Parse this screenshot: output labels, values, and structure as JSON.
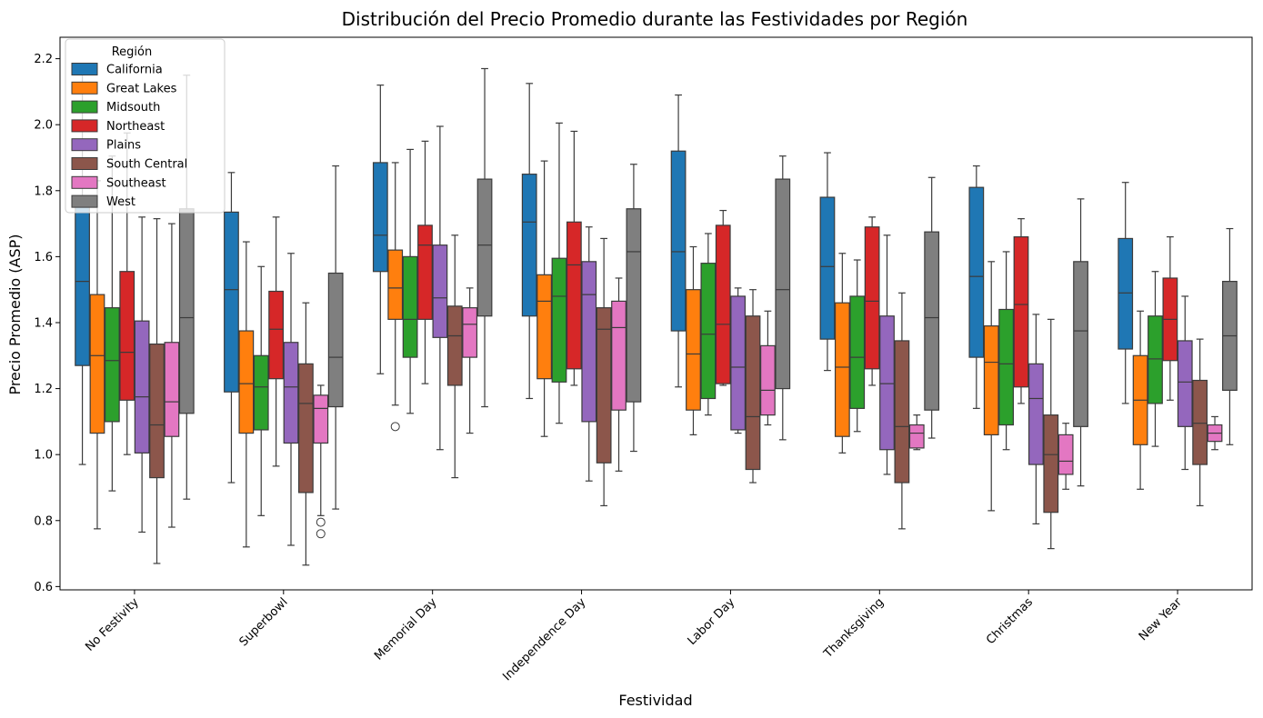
{
  "chart_data": {
    "type": "boxplot",
    "title": "Distribución del Precio Promedio durante las Festividades por Región",
    "xlabel": "Festividad",
    "ylabel": "Precio Promedio (ASP)",
    "ylim": [
      0.59,
      2.265
    ],
    "yticks": [
      0.6,
      0.8,
      1.0,
      1.2,
      1.4,
      1.6,
      1.8,
      2.0,
      2.2
    ],
    "ytick_labels": [
      "0.6",
      "0.8",
      "1.0",
      "1.2",
      "1.4",
      "1.6",
      "1.8",
      "2.0",
      "2.2"
    ],
    "grid": false,
    "legend": {
      "title": "Región",
      "placement": "top-left"
    },
    "categories": [
      "No Festivity",
      "Superbowl",
      "Memorial Day",
      "Independence Day",
      "Labor Day",
      "Thanksgiving",
      "Christmas",
      "New Year"
    ],
    "series": [
      {
        "name": "California",
        "color": "#1f77b4",
        "boxes": [
          {
            "whislo": 0.97,
            "q1": 1.27,
            "med": 1.525,
            "q3": 1.78,
            "whishi": 2.185,
            "fliers": []
          },
          {
            "whislo": 0.915,
            "q1": 1.19,
            "med": 1.5,
            "q3": 1.735,
            "whishi": 1.855,
            "fliers": []
          },
          {
            "whislo": 1.245,
            "q1": 1.555,
            "med": 1.665,
            "q3": 1.885,
            "whishi": 2.12,
            "fliers": []
          },
          {
            "whislo": 1.17,
            "q1": 1.42,
            "med": 1.705,
            "q3": 1.85,
            "whishi": 2.125,
            "fliers": []
          },
          {
            "whislo": 1.205,
            "q1": 1.375,
            "med": 1.615,
            "q3": 1.92,
            "whishi": 2.09,
            "fliers": []
          },
          {
            "whislo": 1.255,
            "q1": 1.35,
            "med": 1.57,
            "q3": 1.78,
            "whishi": 1.915,
            "fliers": []
          },
          {
            "whislo": 1.14,
            "q1": 1.295,
            "med": 1.54,
            "q3": 1.81,
            "whishi": 1.875,
            "fliers": []
          },
          {
            "whislo": 1.155,
            "q1": 1.32,
            "med": 1.49,
            "q3": 1.655,
            "whishi": 1.825,
            "fliers": []
          }
        ]
      },
      {
        "name": "Great Lakes",
        "color": "#ff7f0e",
        "boxes": [
          {
            "whislo": 0.775,
            "q1": 1.065,
            "med": 1.3,
            "q3": 1.485,
            "whishi": 1.83,
            "fliers": []
          },
          {
            "whislo": 0.72,
            "q1": 1.065,
            "med": 1.215,
            "q3": 1.375,
            "whishi": 1.645,
            "fliers": []
          },
          {
            "whislo": 1.15,
            "q1": 1.41,
            "med": 1.505,
            "q3": 1.62,
            "whishi": 1.885,
            "fliers": [
              1.085
            ]
          },
          {
            "whislo": 1.055,
            "q1": 1.23,
            "med": 1.465,
            "q3": 1.545,
            "whishi": 1.89,
            "fliers": []
          },
          {
            "whislo": 1.06,
            "q1": 1.135,
            "med": 1.305,
            "q3": 1.5,
            "whishi": 1.63,
            "fliers": []
          },
          {
            "whislo": 1.005,
            "q1": 1.055,
            "med": 1.265,
            "q3": 1.46,
            "whishi": 1.61,
            "fliers": []
          },
          {
            "whislo": 0.83,
            "q1": 1.06,
            "med": 1.28,
            "q3": 1.39,
            "whishi": 1.585,
            "fliers": []
          },
          {
            "whislo": 0.895,
            "q1": 1.03,
            "med": 1.165,
            "q3": 1.3,
            "whishi": 1.435,
            "fliers": []
          }
        ]
      },
      {
        "name": "Midsouth",
        "color": "#2ca02c",
        "boxes": [
          {
            "whislo": 0.89,
            "q1": 1.1,
            "med": 1.285,
            "q3": 1.445,
            "whishi": 1.905,
            "fliers": []
          },
          {
            "whislo": 0.815,
            "q1": 1.075,
            "med": 1.205,
            "q3": 1.3,
            "whishi": 1.57,
            "fliers": []
          },
          {
            "whislo": 1.125,
            "q1": 1.295,
            "med": 1.41,
            "q3": 1.6,
            "whishi": 1.925,
            "fliers": []
          },
          {
            "whislo": 1.095,
            "q1": 1.22,
            "med": 1.48,
            "q3": 1.595,
            "whishi": 2.005,
            "fliers": []
          },
          {
            "whislo": 1.12,
            "q1": 1.17,
            "med": 1.365,
            "q3": 1.58,
            "whishi": 1.67,
            "fliers": []
          },
          {
            "whislo": 1.07,
            "q1": 1.14,
            "med": 1.295,
            "q3": 1.48,
            "whishi": 1.59,
            "fliers": []
          },
          {
            "whislo": 1.015,
            "q1": 1.09,
            "med": 1.275,
            "q3": 1.44,
            "whishi": 1.615,
            "fliers": []
          },
          {
            "whislo": 1.025,
            "q1": 1.155,
            "med": 1.29,
            "q3": 1.42,
            "whishi": 1.555,
            "fliers": []
          }
        ]
      },
      {
        "name": "Northeast",
        "color": "#d62728",
        "boxes": [
          {
            "whislo": 1.0,
            "q1": 1.165,
            "med": 1.31,
            "q3": 1.555,
            "whishi": 1.975,
            "fliers": []
          },
          {
            "whislo": 0.965,
            "q1": 1.23,
            "med": 1.38,
            "q3": 1.495,
            "whishi": 1.72,
            "fliers": []
          },
          {
            "whislo": 1.215,
            "q1": 1.41,
            "med": 1.635,
            "q3": 1.695,
            "whishi": 1.95,
            "fliers": []
          },
          {
            "whislo": 1.21,
            "q1": 1.26,
            "med": 1.575,
            "q3": 1.705,
            "whishi": 1.98,
            "fliers": []
          },
          {
            "whislo": 1.21,
            "q1": 1.215,
            "med": 1.395,
            "q3": 1.695,
            "whishi": 1.74,
            "fliers": []
          },
          {
            "whislo": 1.21,
            "q1": 1.26,
            "med": 1.465,
            "q3": 1.69,
            "whishi": 1.72,
            "fliers": []
          },
          {
            "whislo": 1.155,
            "q1": 1.205,
            "med": 1.455,
            "q3": 1.66,
            "whishi": 1.715,
            "fliers": []
          },
          {
            "whislo": 1.165,
            "q1": 1.285,
            "med": 1.41,
            "q3": 1.535,
            "whishi": 1.66,
            "fliers": []
          }
        ]
      },
      {
        "name": "Plains",
        "color": "#9467bd",
        "boxes": [
          {
            "whislo": 0.765,
            "q1": 1.005,
            "med": 1.175,
            "q3": 1.405,
            "whishi": 1.72,
            "fliers": []
          },
          {
            "whislo": 0.725,
            "q1": 1.035,
            "med": 1.205,
            "q3": 1.34,
            "whishi": 1.61,
            "fliers": []
          },
          {
            "whislo": 1.015,
            "q1": 1.355,
            "med": 1.475,
            "q3": 1.635,
            "whishi": 1.995,
            "fliers": []
          },
          {
            "whislo": 0.92,
            "q1": 1.1,
            "med": 1.485,
            "q3": 1.585,
            "whishi": 1.69,
            "fliers": []
          },
          {
            "whislo": 1.065,
            "q1": 1.075,
            "med": 1.265,
            "q3": 1.48,
            "whishi": 1.505,
            "fliers": []
          },
          {
            "whislo": 0.94,
            "q1": 1.015,
            "med": 1.215,
            "q3": 1.42,
            "whishi": 1.665,
            "fliers": []
          },
          {
            "whislo": 0.79,
            "q1": 0.97,
            "med": 1.17,
            "q3": 1.275,
            "whishi": 1.425,
            "fliers": []
          },
          {
            "whislo": 0.955,
            "q1": 1.085,
            "med": 1.22,
            "q3": 1.345,
            "whishi": 1.48,
            "fliers": []
          }
        ]
      },
      {
        "name": "South Central",
        "color": "#8c564b",
        "boxes": [
          {
            "whislo": 0.67,
            "q1": 0.93,
            "med": 1.09,
            "q3": 1.335,
            "whishi": 1.715,
            "fliers": []
          },
          {
            "whislo": 0.665,
            "q1": 0.885,
            "med": 1.155,
            "q3": 1.275,
            "whishi": 1.46,
            "fliers": []
          },
          {
            "whislo": 0.93,
            "q1": 1.21,
            "med": 1.36,
            "q3": 1.45,
            "whishi": 1.665,
            "fliers": []
          },
          {
            "whislo": 0.845,
            "q1": 0.975,
            "med": 1.38,
            "q3": 1.445,
            "whishi": 1.655,
            "fliers": []
          },
          {
            "whislo": 0.915,
            "q1": 0.955,
            "med": 1.115,
            "q3": 1.42,
            "whishi": 1.5,
            "fliers": []
          },
          {
            "whislo": 0.775,
            "q1": 0.915,
            "med": 1.085,
            "q3": 1.345,
            "whishi": 1.49,
            "fliers": []
          },
          {
            "whislo": 0.715,
            "q1": 0.825,
            "med": 1.0,
            "q3": 1.12,
            "whishi": 1.41,
            "fliers": []
          },
          {
            "whislo": 0.845,
            "q1": 0.97,
            "med": 1.095,
            "q3": 1.225,
            "whishi": 1.35,
            "fliers": []
          }
        ]
      },
      {
        "name": "Southeast",
        "color": "#e377c2",
        "boxes": [
          {
            "whislo": 0.78,
            "q1": 1.055,
            "med": 1.16,
            "q3": 1.34,
            "whishi": 1.7,
            "fliers": []
          },
          {
            "whislo": 0.815,
            "q1": 1.035,
            "med": 1.14,
            "q3": 1.18,
            "whishi": 1.21,
            "fliers": [
              0.795,
              0.76
            ]
          },
          {
            "whislo": 1.065,
            "q1": 1.295,
            "med": 1.395,
            "q3": 1.445,
            "whishi": 1.505,
            "fliers": []
          },
          {
            "whislo": 0.95,
            "q1": 1.135,
            "med": 1.385,
            "q3": 1.465,
            "whishi": 1.535,
            "fliers": []
          },
          {
            "whislo": 1.09,
            "q1": 1.12,
            "med": 1.195,
            "q3": 1.33,
            "whishi": 1.435,
            "fliers": []
          },
          {
            "whislo": 1.015,
            "q1": 1.02,
            "med": 1.065,
            "q3": 1.09,
            "whishi": 1.12,
            "fliers": []
          },
          {
            "whislo": 0.895,
            "q1": 0.94,
            "med": 0.98,
            "q3": 1.06,
            "whishi": 1.095,
            "fliers": []
          },
          {
            "whislo": 1.015,
            "q1": 1.04,
            "med": 1.065,
            "q3": 1.09,
            "whishi": 1.115,
            "fliers": []
          }
        ]
      },
      {
        "name": "West",
        "color": "#7f7f7f",
        "boxes": [
          {
            "whislo": 0.865,
            "q1": 1.125,
            "med": 1.415,
            "q3": 1.745,
            "whishi": 2.15,
            "fliers": []
          },
          {
            "whislo": 0.835,
            "q1": 1.145,
            "med": 1.295,
            "q3": 1.55,
            "whishi": 1.875,
            "fliers": []
          },
          {
            "whislo": 1.145,
            "q1": 1.42,
            "med": 1.635,
            "q3": 1.835,
            "whishi": 2.17,
            "fliers": []
          },
          {
            "whislo": 1.01,
            "q1": 1.16,
            "med": 1.615,
            "q3": 1.745,
            "whishi": 1.88,
            "fliers": []
          },
          {
            "whislo": 1.045,
            "q1": 1.2,
            "med": 1.5,
            "q3": 1.835,
            "whishi": 1.905,
            "fliers": []
          },
          {
            "whislo": 1.05,
            "q1": 1.135,
            "med": 1.415,
            "q3": 1.675,
            "whishi": 1.84,
            "fliers": []
          },
          {
            "whislo": 0.905,
            "q1": 1.085,
            "med": 1.375,
            "q3": 1.585,
            "whishi": 1.775,
            "fliers": []
          },
          {
            "whislo": 1.03,
            "q1": 1.195,
            "med": 1.36,
            "q3": 1.525,
            "whishi": 1.685,
            "fliers": []
          }
        ]
      }
    ]
  }
}
